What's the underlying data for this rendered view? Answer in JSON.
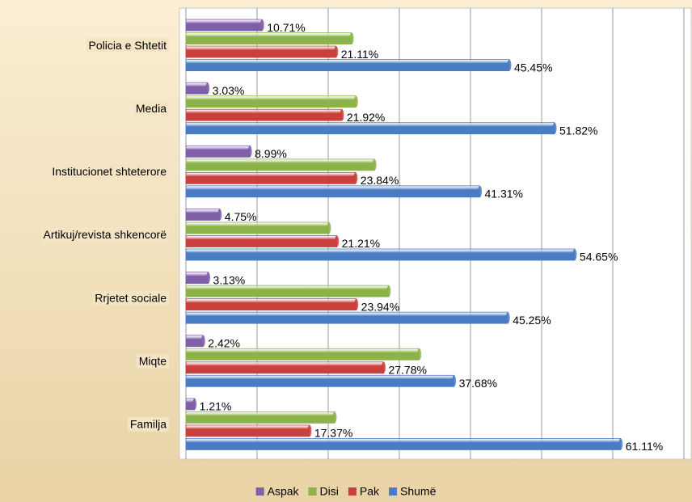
{
  "chart_data": {
    "type": "bar",
    "orientation": "horizontal",
    "categories": [
      "Policia e Shtetit",
      "Media",
      "Institucionet shteterore",
      "Artikuj/revista shkencorë",
      "Rrjetet sociale",
      "Miqte",
      "Familja"
    ],
    "series": [
      {
        "name": "Aspak",
        "color": "#7f5fa8",
        "values": [
          10.71,
          3.03,
          8.99,
          4.75,
          3.13,
          2.42,
          1.21
        ],
        "value_labels": [
          "10.71%",
          "3.03%",
          "8.99%",
          "4.75%",
          "3.13%",
          "2.42%",
          "1.21%"
        ]
      },
      {
        "name": "Disi",
        "color": "#8cb34a",
        "values": [
          23.3,
          23.9,
          26.5,
          20.1,
          28.5,
          32.8,
          20.9
        ]
      },
      {
        "name": "Pak",
        "color": "#c9403d",
        "values": [
          21.11,
          21.92,
          23.84,
          21.21,
          23.94,
          27.78,
          17.37
        ],
        "value_labels": [
          "21.11%",
          "21.92%",
          "23.84%",
          "21.21%",
          "23.94%",
          "27.78%",
          "17.37%"
        ]
      },
      {
        "name": "Shumë",
        "color": "#4a7cc4",
        "values": [
          45.45,
          51.82,
          41.31,
          54.65,
          45.25,
          37.68,
          61.11
        ],
        "value_labels": [
          "45.45%",
          "51.82%",
          "41.31%",
          "54.65%",
          "45.25%",
          "37.68%",
          "61.11%"
        ]
      }
    ],
    "xlim": [
      0,
      70
    ],
    "xticks": [
      0,
      10,
      20,
      30,
      40,
      50,
      60,
      70
    ],
    "grid": true,
    "legend": "bottom"
  }
}
